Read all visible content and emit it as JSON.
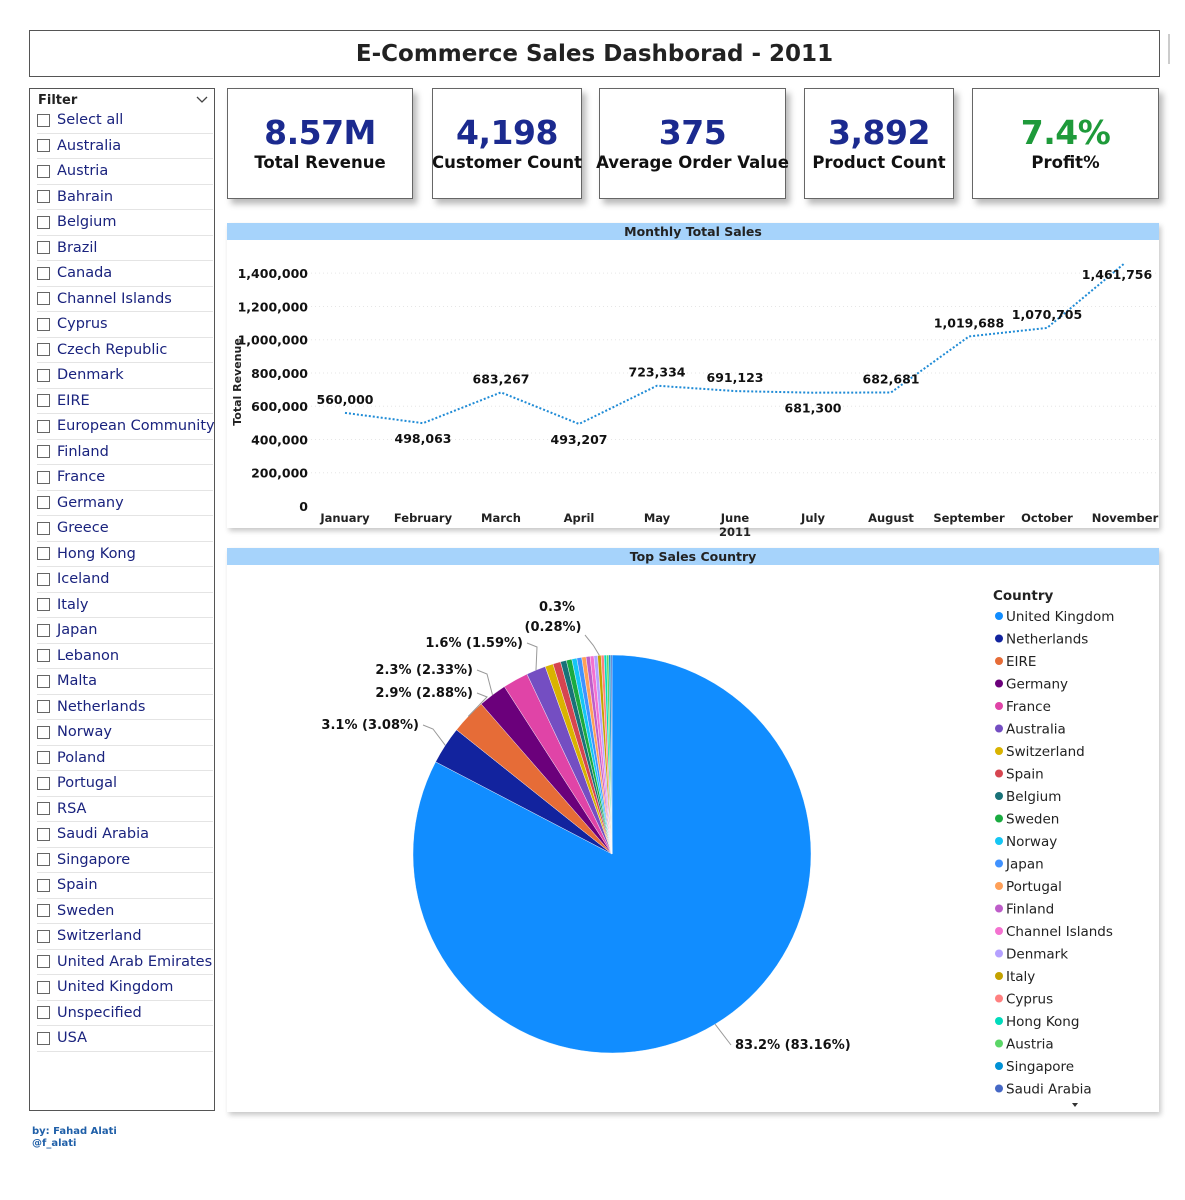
{
  "title": "E-Commerce Sales Dashborad - 2011",
  "filter": {
    "header": "Filter",
    "items": [
      "Select all",
      "Australia",
      "Austria",
      "Bahrain",
      "Belgium",
      "Brazil",
      "Canada",
      "Channel Islands",
      "Cyprus",
      "Czech Republic",
      "Denmark",
      "EIRE",
      "European Community",
      "Finland",
      "France",
      "Germany",
      "Greece",
      "Hong Kong",
      "Iceland",
      "Italy",
      "Japan",
      "Lebanon",
      "Malta",
      "Netherlands",
      "Norway",
      "Poland",
      "Portugal",
      "RSA",
      "Saudi Arabia",
      "Singapore",
      "Spain",
      "Sweden",
      "Switzerland",
      "United Arab Emirates",
      "United Kingdom",
      "Unspecified",
      "USA"
    ]
  },
  "kpis": [
    {
      "value": "8.57M",
      "label": "Total Revenue"
    },
    {
      "value": "4,198",
      "label": "Customer Count"
    },
    {
      "value": "375",
      "label": "Average Order Value"
    },
    {
      "value": "3,892",
      "label": "Product Count"
    },
    {
      "value": "7.4%",
      "label": "Profit%"
    }
  ],
  "colors": {
    "accent": "#1b2a8f",
    "profit": "#1e9a3a",
    "panel_header": "#a6d3fb",
    "line": "#1f8bd6"
  },
  "line_panel": {
    "title": "Monthly Total Sales"
  },
  "pie_panel": {
    "title": "Top Sales Country",
    "legend_title": "Country"
  },
  "credit": {
    "line1": "by: Fahad Alati",
    "line2": "@f_alati"
  },
  "chart_data": [
    {
      "type": "line",
      "title": "Monthly Total Sales",
      "xlabel": "2011",
      "ylabel": "Total Revenue",
      "ylim": [
        0,
        1461756
      ],
      "categories": [
        "January",
        "February",
        "March",
        "April",
        "May",
        "June",
        "July",
        "August",
        "September",
        "October",
        "November"
      ],
      "x_group_label": {
        "category": "June",
        "text": "2011"
      },
      "values": [
        560000,
        498063,
        683267,
        493207,
        723334,
        691123,
        681300,
        682681,
        1019688,
        1070705,
        1461756
      ],
      "data_labels": [
        "560,000",
        "498,063",
        "683,267",
        "493,207",
        "723,334",
        "691,123",
        "681,300",
        "682,681",
        "1,019,688",
        "1,070,705",
        "1,461,756"
      ],
      "y_ticks": [
        0,
        200000,
        400000,
        600000,
        800000,
        1000000,
        1200000,
        1400000
      ],
      "y_tick_labels": [
        "0",
        "200,000",
        "400,000",
        "600,000",
        "800,000",
        "1,000,000",
        "1,200,000",
        "1,400,000"
      ]
    },
    {
      "type": "pie",
      "title": "Top Sales Country",
      "legend_title": "Country",
      "start_angle": 0,
      "slices": [
        {
          "label": "United Kingdom",
          "value": 83.16,
          "color": "#118dff",
          "data_label": "83.2% (83.16%)"
        },
        {
          "label": "Netherlands",
          "value": 3.08,
          "color": "#12239e",
          "data_label": "3.1% (3.08%)"
        },
        {
          "label": "EIRE",
          "value": 2.88,
          "color": "#e66c37",
          "data_label": "2.9% (2.88%)"
        },
        {
          "label": "Germany",
          "value": 2.33,
          "color": "#6b007b",
          "data_label": "2.3% (2.33%)"
        },
        {
          "label": "France",
          "value": 2.08,
          "color": "#e044a7",
          "data_label": ""
        },
        {
          "label": "Australia",
          "value": 1.59,
          "color": "#744ec2",
          "data_label": "1.6% (1.59%)"
        },
        {
          "label": "Switzerland",
          "value": 0.66,
          "color": "#d9b300",
          "data_label": ""
        },
        {
          "label": "Spain",
          "value": 0.63,
          "color": "#d64550",
          "data_label": ""
        },
        {
          "label": "Belgium",
          "value": 0.48,
          "color": "#197278",
          "data_label": ""
        },
        {
          "label": "Sweden",
          "value": 0.45,
          "color": "#1aab40",
          "data_label": ""
        },
        {
          "label": "Norway",
          "value": 0.41,
          "color": "#15c6f4",
          "data_label": ""
        },
        {
          "label": "Japan",
          "value": 0.4,
          "color": "#4092ff",
          "data_label": ""
        },
        {
          "label": "Portugal",
          "value": 0.35,
          "color": "#ffa058",
          "data_label": ""
        },
        {
          "label": "Finland",
          "value": 0.33,
          "color": "#be5dc9",
          "data_label": ""
        },
        {
          "label": "Channel Islands",
          "value": 0.31,
          "color": "#f472d0",
          "data_label": ""
        },
        {
          "label": "Denmark",
          "value": 0.3,
          "color": "#b5a1ff",
          "data_label": ""
        },
        {
          "label": "Italy",
          "value": 0.28,
          "color": "#c4a200",
          "data_label": "0.3% (0.28%)"
        },
        {
          "label": "Cyprus",
          "value": 0.24,
          "color": "#ff8080",
          "data_label": ""
        },
        {
          "label": "Hong Kong",
          "value": 0.2,
          "color": "#00dbbc",
          "data_label": ""
        },
        {
          "label": "Austria",
          "value": 0.18,
          "color": "#5bd667",
          "data_label": ""
        },
        {
          "label": "Singapore",
          "value": 0.16,
          "color": "#0091d5",
          "data_label": ""
        },
        {
          "label": "Saudi Arabia",
          "value": 0.1,
          "color": "#4668c5",
          "data_label": ""
        }
      ]
    }
  ]
}
